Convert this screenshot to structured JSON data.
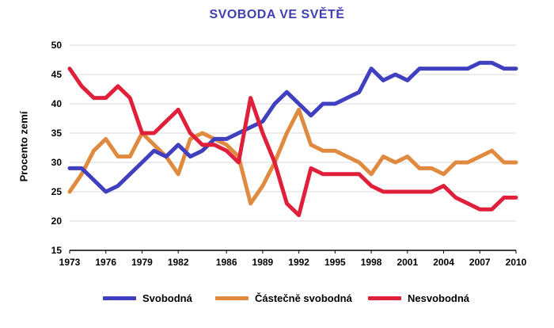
{
  "chart_data": {
    "type": "line",
    "title": "SVOBODA VE SVĚTĚ",
    "ylabel": "Procento zemí",
    "xlabel": "",
    "xlim": [
      1973,
      2010
    ],
    "ylim": [
      15,
      50
    ],
    "yticks": [
      15,
      20,
      25,
      30,
      35,
      40,
      45,
      50
    ],
    "xticks": [
      1973,
      1976,
      1979,
      1982,
      1986,
      1989,
      1992,
      1995,
      1998,
      2001,
      2004,
      2007,
      2010
    ],
    "grid": "horizontal",
    "legend": "bottom",
    "x": [
      1973,
      1974,
      1975,
      1976,
      1977,
      1978,
      1979,
      1980,
      1981,
      1982,
      1983,
      1984,
      1985,
      1986,
      1987,
      1988,
      1989,
      1990,
      1991,
      1992,
      1993,
      1994,
      1995,
      1996,
      1997,
      1998,
      1999,
      2000,
      2001,
      2002,
      2003,
      2004,
      2005,
      2006,
      2007,
      2008,
      2009,
      2010
    ],
    "series": [
      {
        "name": "Svobodná",
        "color": "#3f3fbf",
        "values": [
          29,
          29,
          27,
          25,
          26,
          28,
          30,
          32,
          31,
          33,
          31,
          32,
          34,
          34,
          35,
          36,
          37,
          40,
          42,
          40,
          38,
          40,
          40,
          41,
          42,
          46,
          44,
          45,
          44,
          46,
          46,
          46,
          46,
          46,
          47,
          47,
          46,
          46
        ]
      },
      {
        "name": "Částečně svobodná",
        "color": "#e08a40",
        "values": [
          25,
          28,
          32,
          34,
          31,
          31,
          35,
          33,
          31,
          28,
          34,
          35,
          34,
          33,
          31,
          23,
          26,
          30,
          35,
          39,
          33,
          32,
          32,
          31,
          30,
          28,
          31,
          30,
          31,
          29,
          29,
          28,
          30,
          30,
          31,
          32,
          30,
          30
        ]
      },
      {
        "name": "Nesvobodná",
        "color": "#e0203a",
        "values": [
          46,
          43,
          41,
          41,
          43,
          41,
          35,
          35,
          37,
          39,
          35,
          33,
          33,
          32,
          30,
          41,
          35,
          30,
          23,
          21,
          29,
          28,
          28,
          28,
          28,
          26,
          25,
          25,
          25,
          25,
          25,
          26,
          24,
          23,
          22,
          22,
          24,
          24
        ]
      }
    ]
  }
}
